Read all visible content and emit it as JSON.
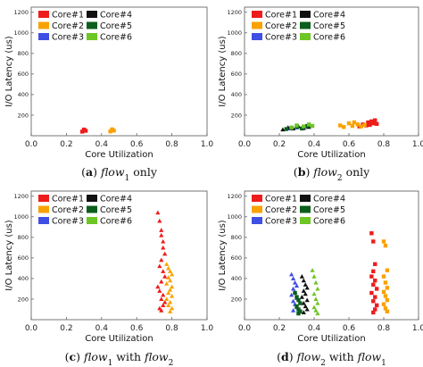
{
  "chart_data": [
    {
      "type": "scatter",
      "panel_letter": "a",
      "caption": {
        "prefix": "(",
        "letter": "a",
        "mid": ") ",
        "var1": "flow",
        "sub1": "1",
        "suffix": " only"
      },
      "xlabel": "Core Utilization",
      "ylabel": "I/O Latency (us)",
      "xlim": [
        0,
        1.0
      ],
      "ylim": [
        0,
        1250
      ],
      "xticks": [
        "0.0",
        "0.2",
        "0.4",
        "0.6",
        "0.8",
        "1.0"
      ],
      "yticks": [
        "200",
        "400",
        "600",
        "800",
        "1000",
        "1200"
      ],
      "legend_position": "top-left",
      "series": [
        {
          "name": "Core#1",
          "color": "#ee1c1c",
          "marker": "square",
          "x": [
            0.29,
            0.3,
            0.3,
            0.31
          ],
          "y": [
            40,
            55,
            60,
            48
          ]
        },
        {
          "name": "Core#2",
          "color": "#f8a200",
          "marker": "square",
          "x": [
            0.45,
            0.46,
            0.46,
            0.47
          ],
          "y": [
            42,
            55,
            62,
            50
          ]
        },
        {
          "name": "Core#3",
          "color": "#3f4fe3",
          "marker": "triangle",
          "x": [],
          "y": []
        },
        {
          "name": "Core#4",
          "color": "#111111",
          "marker": "triangle",
          "x": [],
          "y": []
        },
        {
          "name": "Core#5",
          "color": "#0b5e1b",
          "marker": "square",
          "x": [],
          "y": []
        },
        {
          "name": "Core#6",
          "color": "#6cc624",
          "marker": "square",
          "x": [],
          "y": []
        }
      ]
    },
    {
      "type": "scatter",
      "panel_letter": "b",
      "caption": {
        "prefix": "(",
        "letter": "b",
        "mid": ") ",
        "var1": "flow",
        "sub1": "2",
        "suffix": " only"
      },
      "xlabel": "Core Utilization",
      "ylabel": "I/O Latency (us)",
      "xlim": [
        0,
        1.0
      ],
      "ylim": [
        0,
        1250
      ],
      "xticks": [
        "0.0",
        "0.2",
        "0.4",
        "0.6",
        "0.8",
        "1.0"
      ],
      "yticks": [
        "200",
        "400",
        "600",
        "800",
        "1000",
        "1200"
      ],
      "legend_position": "top-left",
      "series": [
        {
          "name": "Core#1",
          "color": "#ee1c1c",
          "marker": "square",
          "x": [
            0.66,
            0.68,
            0.7,
            0.71,
            0.72,
            0.73,
            0.74,
            0.75,
            0.76
          ],
          "y": [
            90,
            110,
            100,
            130,
            105,
            140,
            120,
            150,
            115
          ]
        },
        {
          "name": "Core#2",
          "color": "#f8a200",
          "marker": "square",
          "x": [
            0.55,
            0.57,
            0.6,
            0.62,
            0.63,
            0.65,
            0.67,
            0.69
          ],
          "y": [
            100,
            85,
            120,
            95,
            130,
            110,
            90,
            105
          ]
        },
        {
          "name": "Core#3",
          "color": "#3f4fe3",
          "marker": "triangle",
          "x": [
            0.26,
            0.3,
            0.33,
            0.36
          ],
          "y": [
            70,
            80,
            75,
            85
          ]
        },
        {
          "name": "Core#4",
          "color": "#111111",
          "marker": "triangle",
          "x": [
            0.22,
            0.25,
            0.28,
            0.31,
            0.34,
            0.37
          ],
          "y": [
            60,
            80,
            70,
            90,
            75,
            85
          ]
        },
        {
          "name": "Core#5",
          "color": "#0b5e1b",
          "marker": "square",
          "x": [
            0.24,
            0.27,
            0.3,
            0.33,
            0.36
          ],
          "y": [
            65,
            75,
            85,
            70,
            95
          ]
        },
        {
          "name": "Core#6",
          "color": "#6cc624",
          "marker": "square",
          "x": [
            0.27,
            0.3,
            0.34,
            0.37,
            0.39
          ],
          "y": [
            80,
            100,
            90,
            110,
            95
          ]
        }
      ]
    },
    {
      "type": "scatter",
      "panel_letter": "c",
      "caption": {
        "prefix": "(",
        "letter": "c",
        "mid": ") ",
        "var1": "flow",
        "sub1": "1",
        "between": " with ",
        "var2": "flow",
        "sub2": "2",
        "suffix": ""
      },
      "xlabel": "Core Utilization",
      "ylabel": "I/O Latency (us)",
      "xlim": [
        0,
        1.0
      ],
      "ylim": [
        0,
        1250
      ],
      "xticks": [
        "0.0",
        "0.2",
        "0.4",
        "0.6",
        "0.8",
        "1.0"
      ],
      "yticks": [
        "200",
        "400",
        "600",
        "800",
        "1000",
        "1200"
      ],
      "legend_position": "top-left",
      "series": [
        {
          "name": "Core#1",
          "color": "#ee1c1c",
          "marker": "triangle",
          "x": [
            0.72,
            0.73,
            0.74,
            0.74,
            0.75,
            0.75,
            0.76,
            0.74,
            0.73,
            0.75,
            0.76,
            0.74,
            0.72,
            0.73,
            0.75,
            0.74,
            0.76,
            0.75,
            0.73,
            0.74
          ],
          "y": [
            1040,
            960,
            870,
            820,
            760,
            700,
            640,
            580,
            520,
            470,
            420,
            370,
            320,
            280,
            240,
            200,
            170,
            140,
            110,
            90
          ]
        },
        {
          "name": "Core#2",
          "color": "#f8a200",
          "marker": "triangle",
          "x": [
            0.77,
            0.78,
            0.79,
            0.8,
            0.78,
            0.79,
            0.77,
            0.8,
            0.79,
            0.78,
            0.8,
            0.77,
            0.79,
            0.78,
            0.8,
            0.79
          ],
          "y": [
            540,
            500,
            470,
            440,
            410,
            380,
            350,
            320,
            290,
            260,
            230,
            200,
            170,
            140,
            110,
            80
          ]
        },
        {
          "name": "Core#3",
          "color": "#3f4fe3",
          "marker": "triangle",
          "x": [],
          "y": []
        },
        {
          "name": "Core#4",
          "color": "#111111",
          "marker": "triangle",
          "x": [],
          "y": []
        },
        {
          "name": "Core#5",
          "color": "#0b5e1b",
          "marker": "square",
          "x": [],
          "y": []
        },
        {
          "name": "Core#6",
          "color": "#6cc624",
          "marker": "square",
          "x": [],
          "y": []
        }
      ]
    },
    {
      "type": "scatter",
      "panel_letter": "d",
      "caption": {
        "prefix": "(",
        "letter": "d",
        "mid": ") ",
        "var1": "flow",
        "sub1": "2",
        "between": " with ",
        "var2": "flow",
        "sub2": "1",
        "suffix": ""
      },
      "xlabel": "Core Utilization",
      "ylabel": "I/O Latency (us)",
      "xlim": [
        0,
        1.0
      ],
      "ylim": [
        0,
        1250
      ],
      "xticks": [
        "0.0",
        "0.2",
        "0.4",
        "0.6",
        "0.8",
        "1.0"
      ],
      "yticks": [
        "200",
        "400",
        "600",
        "800",
        "1000",
        "1200"
      ],
      "legend_position": "top-left",
      "series": [
        {
          "name": "Core#1",
          "color": "#ee1c1c",
          "marker": "square",
          "x": [
            0.73,
            0.74,
            0.75,
            0.74,
            0.73,
            0.75,
            0.74,
            0.76,
            0.73,
            0.75,
            0.74,
            0.76,
            0.75,
            0.74
          ],
          "y": [
            840,
            760,
            540,
            470,
            420,
            380,
            340,
            300,
            260,
            220,
            180,
            140,
            100,
            70
          ]
        },
        {
          "name": "Core#2",
          "color": "#f8a200",
          "marker": "square",
          "x": [
            0.8,
            0.81,
            0.82,
            0.8,
            0.81,
            0.82,
            0.8,
            0.81,
            0.82,
            0.8,
            0.81,
            0.82
          ],
          "y": [
            760,
            720,
            480,
            420,
            360,
            310,
            270,
            230,
            190,
            150,
            110,
            80
          ]
        },
        {
          "name": "Core#3",
          "color": "#3f4fe3",
          "marker": "triangle",
          "x": [
            0.27,
            0.28,
            0.29,
            0.3,
            0.28,
            0.29,
            0.27,
            0.3,
            0.28,
            0.29,
            0.3,
            0.28
          ],
          "y": [
            440,
            400,
            360,
            330,
            300,
            270,
            240,
            210,
            180,
            150,
            120,
            90
          ]
        },
        {
          "name": "Core#4",
          "color": "#111111",
          "marker": "triangle",
          "x": [
            0.33,
            0.34,
            0.35,
            0.36,
            0.34,
            0.35,
            0.33,
            0.36,
            0.34,
            0.35,
            0.36,
            0.34
          ],
          "y": [
            420,
            380,
            340,
            310,
            280,
            250,
            220,
            190,
            160,
            130,
            100,
            70
          ]
        },
        {
          "name": "Core#5",
          "color": "#0b5e1b",
          "marker": "square",
          "x": [
            0.29,
            0.3,
            0.31,
            0.32,
            0.3,
            0.31,
            0.32,
            0.31
          ],
          "y": [
            260,
            220,
            190,
            160,
            130,
            100,
            80,
            60
          ]
        },
        {
          "name": "Core#6",
          "color": "#6cc624",
          "marker": "triangle",
          "x": [
            0.39,
            0.4,
            0.41,
            0.42,
            0.4,
            0.41,
            0.42,
            0.4,
            0.41,
            0.42
          ],
          "y": [
            480,
            420,
            360,
            300,
            250,
            200,
            160,
            120,
            90,
            60
          ]
        }
      ]
    }
  ]
}
